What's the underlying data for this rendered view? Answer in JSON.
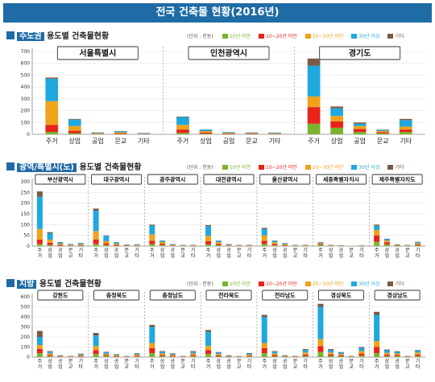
{
  "page_title": "전국 건축물 현황(2016년)",
  "sections": [
    {
      "id": "capital",
      "highlight": "수도권",
      "title": " 용도별 건축물현황"
    },
    {
      "id": "metro",
      "highlight": "광역/특별시(도)",
      "title": " 용도별 건축물현황"
    },
    {
      "id": "province",
      "highlight": "지방",
      "title": " 용도별 건축물현황"
    }
  ],
  "unit_label": "(단위 : 천동)",
  "legend": [
    {
      "label": "10년 미만",
      "color": "#7ab32e"
    },
    {
      "label": "10~20년 미만",
      "color": "#e8231a"
    },
    {
      "label": "20~30년 미만",
      "color": "#f0a21a"
    },
    {
      "label": "30년 이상",
      "color": "#1fa8e0"
    },
    {
      "label": "기타",
      "color": "#7d5a45"
    }
  ],
  "chart_data": [
    {
      "type": "bar",
      "stacked": true,
      "title": "수도권 용도별 건축물현황",
      "ylim": [
        0,
        700
      ],
      "yticks": [
        0,
        100,
        200,
        300,
        400,
        500,
        600,
        700
      ],
      "categories": [
        "주거",
        "상업",
        "공업",
        "문교",
        "기타"
      ],
      "series_names": [
        "10년 미만",
        "10~20년 미만",
        "20~30년 미만",
        "30년 이상",
        "기타"
      ],
      "groups": [
        {
          "name": "서울특별시",
          "values": [
            [
              20,
              60,
              200,
              190,
              10
            ],
            [
              10,
              20,
              40,
              55,
              5
            ],
            [
              2,
              3,
              5,
              6,
              1
            ],
            [
              3,
              6,
              8,
              9,
              2
            ],
            [
              1,
              2,
              3,
              4,
              1
            ]
          ]
        },
        {
          "name": "인천광역시",
          "values": [
            [
              12,
              28,
              40,
              65,
              5
            ],
            [
              5,
              10,
              12,
              12,
              2
            ],
            [
              3,
              4,
              5,
              6,
              1
            ],
            [
              2,
              4,
              5,
              5,
              1
            ],
            [
              2,
              3,
              4,
              5,
              1
            ]
          ]
        },
        {
          "name": "경기도",
          "values": [
            [
              90,
              140,
              90,
              260,
              60
            ],
            [
              55,
              55,
              45,
              65,
              15
            ],
            [
              20,
              25,
              25,
              20,
              10
            ],
            [
              8,
              10,
              10,
              8,
              4
            ],
            [
              20,
              20,
              25,
              55,
              10
            ]
          ]
        }
      ]
    },
    {
      "type": "bar",
      "stacked": true,
      "title": "광역/특별시(도) 용도별 건축물현황",
      "ylim": [
        0,
        300
      ],
      "yticks": [
        0,
        50,
        100,
        150,
        200,
        250,
        300
      ],
      "categories": [
        "주거",
        "상업",
        "공업",
        "문교",
        "기타"
      ],
      "series_names": [
        "10년 미만",
        "10~20년 미만",
        "20~30년 미만",
        "30년 이상",
        "기타"
      ],
      "groups": [
        {
          "name": "부산광역시",
          "values": [
            [
              10,
              20,
              50,
              150,
              25
            ],
            [
              5,
              10,
              15,
              30,
              5
            ],
            [
              2,
              4,
              5,
              6,
              2
            ],
            [
              1,
              2,
              3,
              3,
              1
            ],
            [
              2,
              3,
              4,
              5,
              1
            ]
          ]
        },
        {
          "name": "대구광역시",
          "values": [
            [
              10,
              20,
              40,
              95,
              10
            ],
            [
              5,
              8,
              10,
              25,
              2
            ],
            [
              2,
              4,
              5,
              6,
              1
            ],
            [
              1,
              2,
              2,
              2,
              1
            ],
            [
              1,
              2,
              2,
              3,
              1
            ]
          ]
        },
        {
          "name": "광주광역시",
          "values": [
            [
              10,
              15,
              30,
              40,
              5
            ],
            [
              5,
              6,
              8,
              6,
              1
            ],
            [
              1,
              2,
              3,
              3,
              1
            ],
            [
              1,
              1,
              1,
              1,
              1
            ],
            [
              1,
              1,
              2,
              1,
              1
            ]
          ]
        },
        {
          "name": "대전광역시",
          "values": [
            [
              8,
              15,
              25,
              45,
              5
            ],
            [
              4,
              6,
              8,
              7,
              1
            ],
            [
              1,
              2,
              3,
              3,
              1
            ],
            [
              1,
              1,
              1,
              1,
              1
            ],
            [
              1,
              1,
              2,
              1,
              1
            ]
          ]
        },
        {
          "name": "울산광역시",
          "values": [
            [
              10,
              15,
              25,
              30,
              5
            ],
            [
              4,
              6,
              8,
              7,
              1
            ],
            [
              2,
              3,
              4,
              4,
              1
            ],
            [
              1,
              1,
              1,
              1,
              1
            ],
            [
              1,
              1,
              2,
              1,
              1
            ]
          ]
        },
        {
          "name": "세종특별자치시",
          "values": [
            [
              8,
              4,
              3,
              3,
              1
            ],
            [
              2,
              1,
              1,
              1,
              1
            ],
            [
              1,
              1,
              1,
              1,
              0
            ],
            [
              1,
              0,
              1,
              0,
              0
            ],
            [
              1,
              1,
              1,
              1,
              0
            ]
          ]
        },
        {
          "name": "제주특별자치도",
          "values": [
            [
              20,
              30,
              25,
              20,
              5
            ],
            [
              8,
              10,
              8,
              6,
              2
            ],
            [
              2,
              2,
              2,
              2,
              1
            ],
            [
              1,
              1,
              1,
              1,
              1
            ],
            [
              4,
              4,
              5,
              5,
              2
            ]
          ]
        }
      ]
    },
    {
      "type": "bar",
      "stacked": true,
      "title": "지방 용도별 건축물현황",
      "ylim": [
        0,
        600
      ],
      "yticks": [
        0,
        100,
        200,
        300,
        400,
        500,
        600
      ],
      "categories": [
        "주거",
        "상업",
        "공업",
        "문교",
        "기타"
      ],
      "series_names": [
        "10년 미만",
        "10~20년 미만",
        "20~30년 미만",
        "30년 이상",
        "기타"
      ],
      "groups": [
        {
          "name": "강원도",
          "values": [
            [
              40,
              40,
              40,
              80,
              60
            ],
            [
              10,
              12,
              15,
              18,
              5
            ],
            [
              3,
              4,
              5,
              5,
              2
            ],
            [
              2,
              3,
              3,
              3,
              1
            ],
            [
              5,
              6,
              8,
              10,
              5
            ]
          ]
        },
        {
          "name": "충청북도",
          "values": [
            [
              30,
              40,
              40,
              105,
              25
            ],
            [
              10,
              10,
              12,
              15,
              5
            ],
            [
              5,
              6,
              8,
              8,
              3
            ],
            [
              2,
              2,
              3,
              3,
              1
            ],
            [
              6,
              8,
              10,
              10,
              5
            ]
          ]
        },
        {
          "name": "충청남도",
          "values": [
            [
              40,
              50,
              50,
              160,
              20
            ],
            [
              10,
              12,
              15,
              18,
              5
            ],
            [
              6,
              8,
              10,
              10,
              4
            ],
            [
              2,
              3,
              3,
              3,
              1
            ],
            [
              10,
              12,
              15,
              16,
              7
            ]
          ]
        },
        {
          "name": "전라북도",
          "values": [
            [
              30,
              40,
              40,
              140,
              20
            ],
            [
              8,
              10,
              12,
              15,
              5
            ],
            [
              3,
              4,
              5,
              5,
              2
            ],
            [
              2,
              2,
              3,
              3,
              1
            ],
            [
              6,
              8,
              10,
              12,
              4
            ]
          ]
        },
        {
          "name": "전라남도",
          "values": [
            [
              40,
              50,
              50,
              260,
              20
            ],
            [
              8,
              12,
              15,
              20,
              5
            ],
            [
              3,
              4,
              5,
              6,
              2
            ],
            [
              2,
              3,
              3,
              3,
              1
            ],
            [
              10,
              15,
              20,
              25,
              10
            ]
          ]
        },
        {
          "name": "경상북도",
          "values": [
            [
              50,
              60,
              70,
              320,
              30
            ],
            [
              12,
              15,
              18,
              25,
              10
            ],
            [
              8,
              10,
              12,
              15,
              5
            ],
            [
              2,
              3,
              3,
              3,
              1
            ],
            [
              15,
              20,
              25,
              30,
              10
            ]
          ]
        },
        {
          "name": "경상남도",
          "values": [
            [
              40,
              60,
              60,
              260,
              30
            ],
            [
              10,
              15,
              18,
              25,
              7
            ],
            [
              10,
              12,
              15,
              15,
              6
            ],
            [
              2,
              3,
              3,
              3,
              1
            ],
            [
              10,
              15,
              20,
              20,
              5
            ]
          ]
        }
      ]
    }
  ]
}
